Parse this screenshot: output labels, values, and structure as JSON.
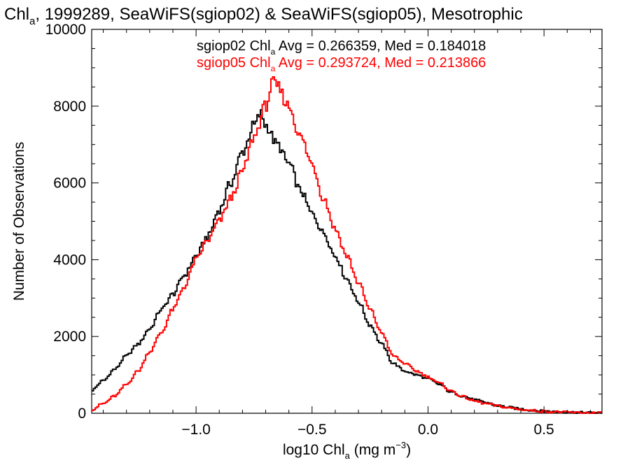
{
  "chart_data": {
    "type": "line",
    "title": {
      "parts": [
        {
          "text": "Chl"
        },
        {
          "text": "a",
          "sub": true
        },
        {
          "text": ", 1999289, SeaWiFS(sgiop02) & SeaWiFS(sgiop05), Mesotrophic"
        }
      ]
    },
    "xlabel": {
      "parts": [
        {
          "text": "log10 Chl"
        },
        {
          "text": "a",
          "sub": true
        },
        {
          "text": " (mg m"
        },
        {
          "text": "−3",
          "sup": true
        },
        {
          "text": ")"
        }
      ]
    },
    "ylabel": "Number of Observations",
    "xlim": [
      -1.45,
      0.75
    ],
    "ylim": [
      0,
      10000
    ],
    "xticks": [
      -1.0,
      -0.5,
      0.0,
      0.5
    ],
    "xtick_labels": [
      "−1.0",
      "−0.5",
      "0.0",
      "0.5"
    ],
    "yticks": [
      0,
      2000,
      4000,
      6000,
      8000,
      10000
    ],
    "ytick_labels": [
      "0",
      "2000",
      "4000",
      "6000",
      "8000",
      "10000"
    ],
    "grid": false,
    "step": true,
    "series": [
      {
        "name": "sgiop02",
        "color": "#000000",
        "legend_parts": [
          {
            "text": "sgiop02 Chl"
          },
          {
            "text": "a",
            "sub": true
          },
          {
            "text": " Avg = 0.266359, Med = 0.184018"
          }
        ],
        "points": [
          [
            -1.45,
            600
          ],
          [
            -1.4,
            850
          ],
          [
            -1.35,
            1150
          ],
          [
            -1.3,
            1500
          ],
          [
            -1.25,
            1800
          ],
          [
            -1.2,
            2200
          ],
          [
            -1.15,
            2700
          ],
          [
            -1.1,
            3100
          ],
          [
            -1.05,
            3600
          ],
          [
            -1.0,
            4100
          ],
          [
            -0.95,
            4600
          ],
          [
            -0.9,
            5300
          ],
          [
            -0.85,
            6000
          ],
          [
            -0.8,
            6800
          ],
          [
            -0.75,
            7500
          ],
          [
            -0.72,
            7800
          ],
          [
            -0.7,
            7500
          ],
          [
            -0.65,
            7000
          ],
          [
            -0.6,
            6500
          ],
          [
            -0.55,
            5800
          ],
          [
            -0.5,
            5200
          ],
          [
            -0.45,
            4700
          ],
          [
            -0.4,
            4100
          ],
          [
            -0.35,
            3500
          ],
          [
            -0.3,
            2900
          ],
          [
            -0.25,
            2300
          ],
          [
            -0.2,
            1800
          ],
          [
            -0.15,
            1300
          ],
          [
            -0.1,
            1100
          ],
          [
            -0.05,
            1000
          ],
          [
            0.0,
            900
          ],
          [
            0.05,
            750
          ],
          [
            0.1,
            550
          ],
          [
            0.15,
            450
          ],
          [
            0.2,
            350
          ],
          [
            0.25,
            280
          ],
          [
            0.3,
            200
          ],
          [
            0.35,
            150
          ],
          [
            0.4,
            110
          ],
          [
            0.45,
            80
          ],
          [
            0.5,
            55
          ],
          [
            0.55,
            40
          ],
          [
            0.6,
            30
          ],
          [
            0.65,
            20
          ],
          [
            0.7,
            12
          ],
          [
            0.75,
            8
          ]
        ]
      },
      {
        "name": "sgiop05",
        "color": "#ff0000",
        "legend_parts": [
          {
            "text": "sgiop05 Chl"
          },
          {
            "text": "a",
            "sub": true
          },
          {
            "text": " Avg = 0.293724, Med = 0.213866"
          }
        ],
        "points": [
          [
            -1.45,
            100
          ],
          [
            -1.4,
            250
          ],
          [
            -1.35,
            450
          ],
          [
            -1.3,
            750
          ],
          [
            -1.25,
            1100
          ],
          [
            -1.2,
            1600
          ],
          [
            -1.15,
            2100
          ],
          [
            -1.1,
            2700
          ],
          [
            -1.05,
            3300
          ],
          [
            -1.0,
            4000
          ],
          [
            -0.95,
            4500
          ],
          [
            -0.9,
            5000
          ],
          [
            -0.85,
            5600
          ],
          [
            -0.8,
            6300
          ],
          [
            -0.75,
            7200
          ],
          [
            -0.7,
            8000
          ],
          [
            -0.67,
            8600
          ],
          [
            -0.65,
            8500
          ],
          [
            -0.6,
            8000
          ],
          [
            -0.55,
            7200
          ],
          [
            -0.5,
            6500
          ],
          [
            -0.45,
            5600
          ],
          [
            -0.4,
            4800
          ],
          [
            -0.35,
            4100
          ],
          [
            -0.3,
            3400
          ],
          [
            -0.25,
            2700
          ],
          [
            -0.2,
            2100
          ],
          [
            -0.15,
            1500
          ],
          [
            -0.1,
            1300
          ],
          [
            -0.05,
            1100
          ],
          [
            0.0,
            950
          ],
          [
            0.05,
            780
          ],
          [
            0.1,
            580
          ],
          [
            0.15,
            430
          ],
          [
            0.2,
            320
          ],
          [
            0.25,
            250
          ],
          [
            0.3,
            190
          ],
          [
            0.35,
            140
          ],
          [
            0.4,
            100
          ],
          [
            0.45,
            70
          ],
          [
            0.5,
            50
          ],
          [
            0.55,
            35
          ],
          [
            0.6,
            25
          ],
          [
            0.65,
            15
          ],
          [
            0.7,
            10
          ],
          [
            0.75,
            6
          ]
        ]
      }
    ]
  }
}
